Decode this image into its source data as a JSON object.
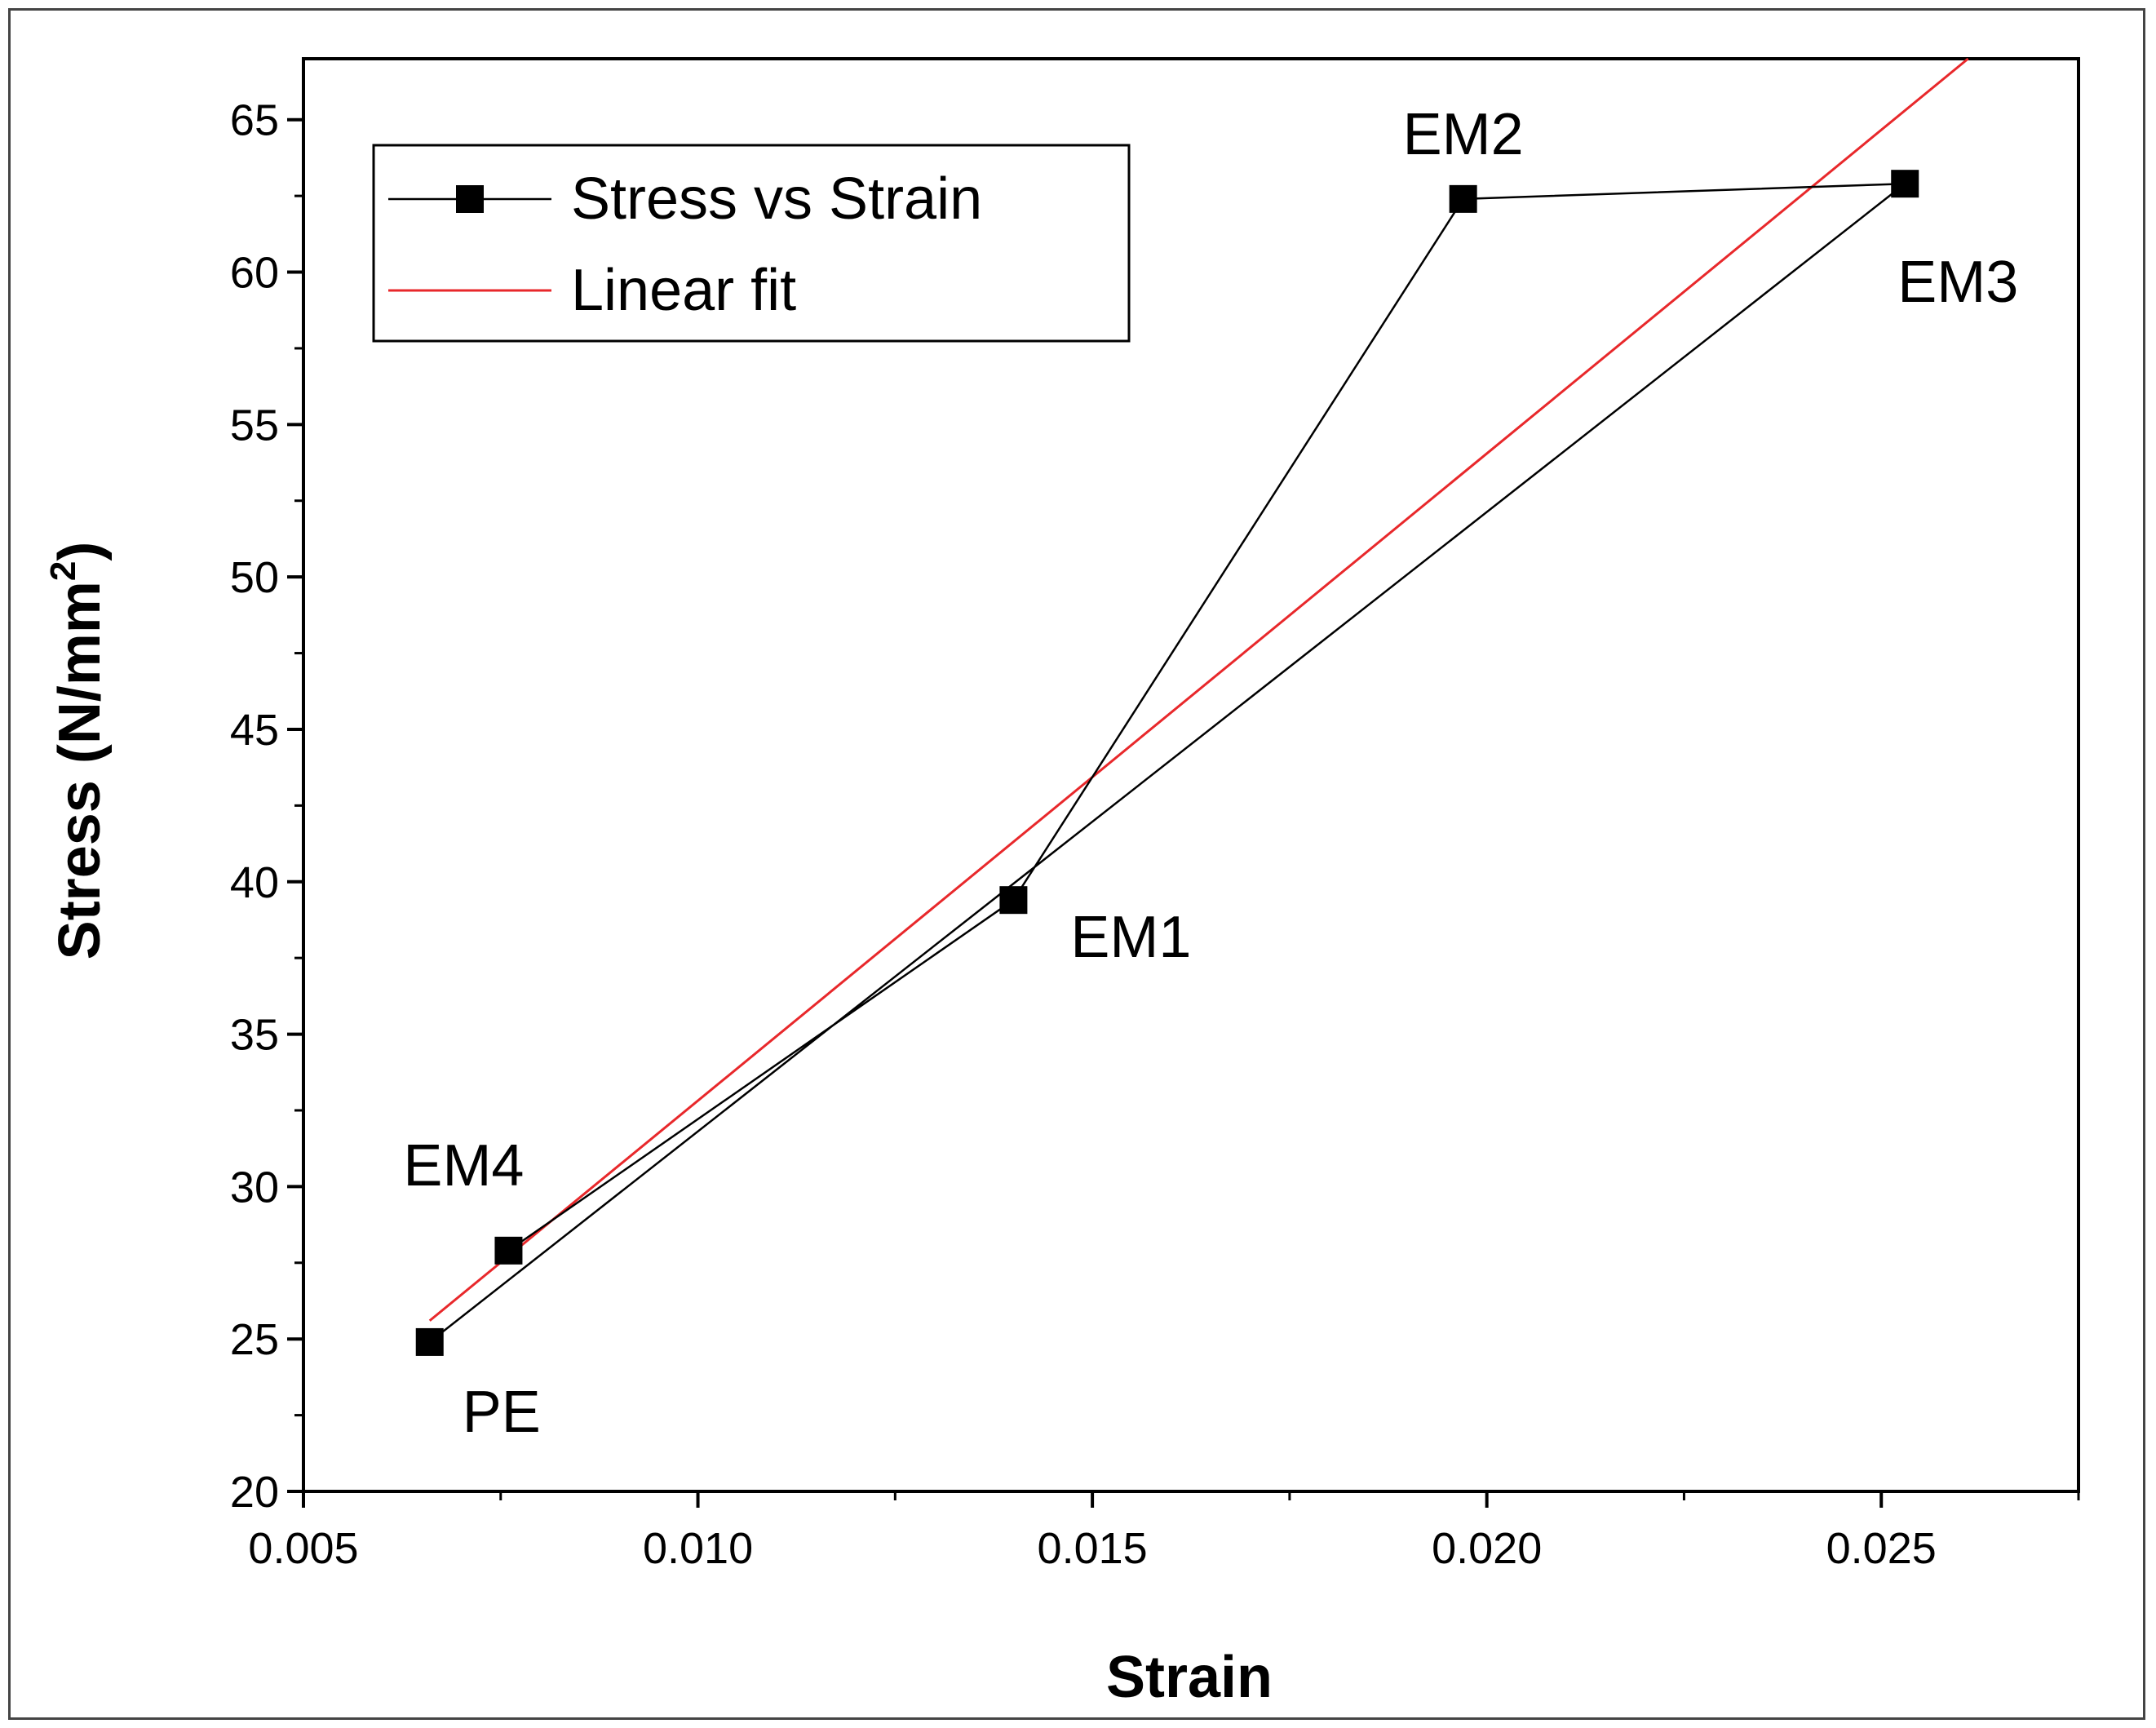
{
  "chart_data": {
    "type": "line",
    "title": "",
    "xlabel": "Strain",
    "ylabel": "Stress (N/mm",
    "ylabel_sup": "2",
    "ylabel_close": ")",
    "xlim": [
      0.005,
      0.0275
    ],
    "ylim": [
      20,
      67
    ],
    "xticks": [
      0.005,
      0.01,
      0.015,
      0.02,
      0.025
    ],
    "xtick_labels": [
      "0.005",
      "0.010",
      "0.015",
      "0.020",
      "0.025"
    ],
    "xminor": [
      0.0075,
      0.0125,
      0.0175,
      0.0225,
      0.0275
    ],
    "yticks": [
      20,
      25,
      30,
      35,
      40,
      45,
      50,
      55,
      60,
      65
    ],
    "ytick_labels": [
      "20",
      "25",
      "30",
      "35",
      "40",
      "45",
      "50",
      "55",
      "60",
      "65"
    ],
    "yminor": [
      22.5,
      27.5,
      32.5,
      37.5,
      42.5,
      47.5,
      52.5,
      57.5,
      62.5
    ],
    "series": [
      {
        "name": "Stress  vs Strain",
        "color": "#000000",
        "marker": "square",
        "points": [
          {
            "label": "PE",
            "x": 0.0066,
            "y": 24.9
          },
          {
            "label": "EM4",
            "x": 0.0076,
            "y": 27.9
          },
          {
            "label": "EM1",
            "x": 0.014,
            "y": 39.4
          },
          {
            "label": "EM2",
            "x": 0.0197,
            "y": 62.4
          },
          {
            "label": "EM3",
            "x": 0.0253,
            "y": 62.9
          }
        ],
        "path_order": [
          "PE",
          "EM3",
          "EM2",
          "EM1",
          "EM4"
        ]
      },
      {
        "name": "Linear fit",
        "color": "#e8282b",
        "marker": "none",
        "x": [
          0.0066,
          0.0261
        ],
        "y": [
          25.6,
          67.0
        ]
      }
    ],
    "legend": "top-left",
    "grid": false
  }
}
